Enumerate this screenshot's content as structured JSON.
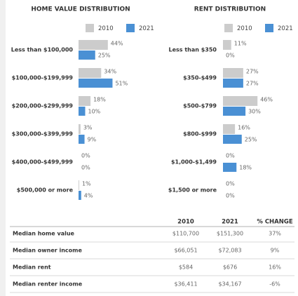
{
  "chart_data": [
    {
      "type": "bar",
      "orientation": "horizontal",
      "title": "HOME VALUE DISTRIBUTION",
      "categories": [
        "Less than $100,000",
        "$100,000-$199,999",
        "$200,000-$299,999",
        "$300,000-$399,999",
        "$400,000-$499,999",
        "$500,000 or more"
      ],
      "series": [
        {
          "name": "2010",
          "color": "#cccccc",
          "values": [
            44,
            34,
            18,
            3,
            0,
            1
          ],
          "value_labels": [
            "44%",
            "34%",
            "18%",
            "3%",
            "0%",
            "1%"
          ]
        },
        {
          "name": "2021",
          "color": "#4a90d4",
          "values": [
            25,
            51,
            10,
            9,
            0,
            4
          ],
          "value_labels": [
            "25%",
            "51%",
            "10%",
            "9%",
            "0%",
            "4%"
          ]
        }
      ]
    },
    {
      "type": "bar",
      "orientation": "horizontal",
      "title": "RENT DISTRIBUTION",
      "categories": [
        "Less than $350",
        "$350-$499",
        "$500-$799",
        "$800-$999",
        "$1,000-$1,499",
        "$1,500 or more"
      ],
      "series": [
        {
          "name": "2010",
          "color": "#cccccc",
          "values": [
            11,
            27,
            46,
            16,
            0,
            0
          ],
          "value_labels": [
            "11%",
            "27%",
            "46%",
            "16%",
            "0%",
            "0%"
          ]
        },
        {
          "name": "2021",
          "color": "#4a90d4",
          "values": [
            0,
            27,
            30,
            25,
            18,
            0
          ],
          "value_labels": [
            "0%",
            "27%",
            "30%",
            "25%",
            "18%",
            "0%"
          ]
        }
      ]
    }
  ],
  "table": {
    "columns": [
      "2010",
      "2021",
      "% CHANGE"
    ],
    "rows": [
      [
        "Median home value",
        "$110,700",
        "$151,300",
        "37%"
      ],
      [
        "Median owner income",
        "$66,051",
        "$72,083",
        "9%"
      ],
      [
        "Median rent",
        "$584",
        "$676",
        "16%"
      ],
      [
        "Median renter income",
        "$36,411",
        "$34,167",
        "-6%"
      ]
    ]
  }
}
